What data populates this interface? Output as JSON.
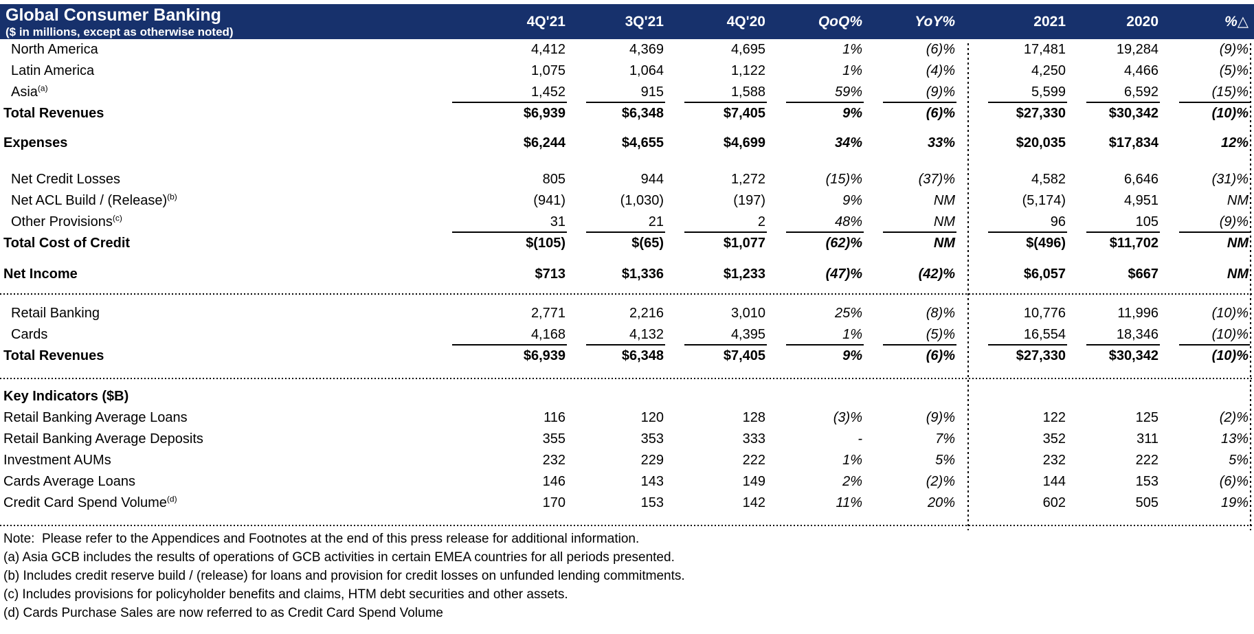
{
  "header": {
    "bg_color": "#17316C",
    "title": "Global Consumer Banking",
    "subtitle": "($ in millions, except as otherwise noted)",
    "columns": [
      "4Q'21",
      "3Q'21",
      "4Q'20",
      "QoQ%",
      "YoY%",
      "2021",
      "2020",
      "%△"
    ]
  },
  "table": {
    "rows": [
      {
        "label": "North America",
        "indent": true,
        "values": [
          "4,412",
          "4,369",
          "4,695",
          "1%",
          "(6)%",
          "17,481",
          "19,284",
          "(9)%"
        ]
      },
      {
        "label": "Latin America",
        "indent": true,
        "values": [
          "1,075",
          "1,064",
          "1,122",
          "1%",
          "(4)%",
          "4,250",
          "4,466",
          "(5)%"
        ]
      },
      {
        "label": "Asia",
        "sup": "(a)",
        "indent": true,
        "underline": true,
        "values": [
          "1,452",
          "915",
          "1,588",
          "59%",
          "(9)%",
          "5,599",
          "6,592",
          "(15)%"
        ]
      },
      {
        "label": "Total Revenues",
        "total": true,
        "values": [
          "$6,939",
          "$6,348",
          "$7,405",
          "9%",
          "(6)%",
          "$27,330",
          "$30,342",
          "(10)%"
        ]
      },
      {
        "label": "Expenses",
        "total": true,
        "values": [
          "$6,244",
          "$4,655",
          "$4,699",
          "34%",
          "33%",
          "$20,035",
          "$17,834",
          "12%"
        ]
      },
      {
        "label": "Net Credit Losses",
        "indent": true,
        "values": [
          "805",
          "944",
          "1,272",
          "(15)%",
          "(37)%",
          "4,582",
          "6,646",
          "(31)%"
        ]
      },
      {
        "label": "Net ACL Build / (Release)",
        "sup": "(b)",
        "indent": true,
        "values": [
          "(941)",
          "(1,030)",
          "(197)",
          "9%",
          "NM",
          "(5,174)",
          "4,951",
          "NM"
        ]
      },
      {
        "label": "Other Provisions",
        "sup": "(c)",
        "indent": true,
        "underline": true,
        "values": [
          "31",
          "21",
          "2",
          "48%",
          "NM",
          "96",
          "105",
          "(9)%"
        ]
      },
      {
        "label": "Total Cost of Credit",
        "total": true,
        "values": [
          "$(105)",
          "$(65)",
          "$1,077",
          "(62)%",
          "NM",
          "$(496)",
          "$11,702",
          "NM"
        ]
      },
      {
        "label": "Net Income",
        "total": true,
        "values": [
          "$713",
          "$1,336",
          "$1,233",
          "(47)%",
          "(42)%",
          "$6,057",
          "$667",
          "NM"
        ]
      },
      {
        "label": "Retail Banking",
        "indent": true,
        "values": [
          "2,771",
          "2,216",
          "3,010",
          "25%",
          "(8)%",
          "10,776",
          "11,996",
          "(10)%"
        ]
      },
      {
        "label": "Cards",
        "indent": true,
        "underline": true,
        "values": [
          "4,168",
          "4,132",
          "4,395",
          "1%",
          "(5)%",
          "16,554",
          "18,346",
          "(10)%"
        ]
      },
      {
        "label": "Total Revenues",
        "total": true,
        "values": [
          "$6,939",
          "$6,348",
          "$7,405",
          "9%",
          "(6)%",
          "$27,330",
          "$30,342",
          "(10)%"
        ]
      },
      {
        "label": "Key Indicators ($B)",
        "total": true,
        "values": []
      },
      {
        "label": "Retail Banking Average Loans",
        "values": [
          "116",
          "120",
          "128",
          "(3)%",
          "(9)%",
          "122",
          "125",
          "(2)%"
        ]
      },
      {
        "label": "Retail Banking Average Deposits",
        "values": [
          "355",
          "353",
          "333",
          "-",
          "7%",
          "352",
          "311",
          "13%"
        ]
      },
      {
        "label": "Investment AUMs",
        "values": [
          "232",
          "229",
          "222",
          "1%",
          "5%",
          "232",
          "222",
          "5%"
        ]
      },
      {
        "label": "Cards Average Loans",
        "values": [
          "146",
          "143",
          "149",
          "2%",
          "(2)%",
          "144",
          "153",
          "(6)%"
        ]
      },
      {
        "label": "Credit Card Spend Volume",
        "sup": "(d)",
        "values": [
          "170",
          "153",
          "142",
          "11%",
          "20%",
          "602",
          "505",
          "19%"
        ]
      }
    ]
  },
  "footnotes": [
    "Note:  Please refer to the Appendices and Footnotes at the end of this press release for additional information.",
    "(a) Asia GCB includes the results of operations of GCB activities in certain EMEA countries for all periods presented.",
    "(b) Includes credit reserve build / (release) for loans and provision for credit losses on unfunded lending commitments.",
    "(c) Includes provisions for policyholder benefits and claims, HTM debt securities and other assets.",
    "(d) Cards Purchase Sales are now referred to as Credit Card Spend Volume"
  ]
}
